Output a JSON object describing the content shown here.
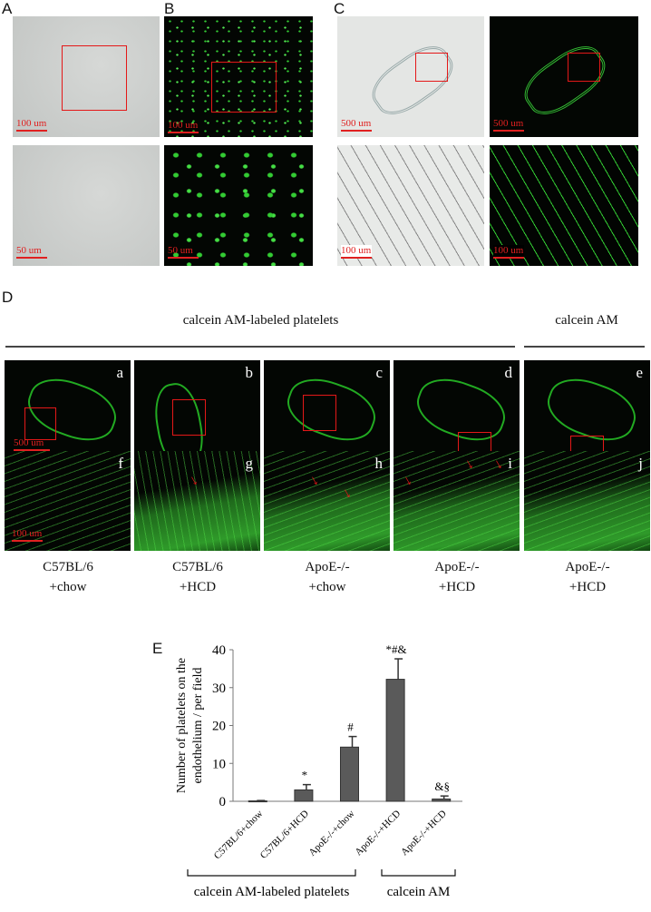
{
  "panels": {
    "A": "A",
    "B": "B",
    "C": "C",
    "D": "D",
    "E": "E"
  },
  "scale_bars": {
    "a_top": "100 um",
    "a_bot": "50 um",
    "b_top": "100 um",
    "b_bot": "50 um",
    "c_top_bf": "500 um",
    "c_top_fl": "500 um",
    "c_bot_bf": "100 um",
    "c_bot_fl": "100 um",
    "d_top": "500 um",
    "d_bot": "100 um"
  },
  "panel_d": {
    "group_labels": [
      "calcein AM-labeled platelets",
      "calcein AM"
    ],
    "subpanels_top": [
      "a",
      "b",
      "c",
      "d",
      "e"
    ],
    "subpanels_bottom": [
      "f",
      "g",
      "h",
      "i",
      "j"
    ],
    "captions": [
      [
        "C57BL/6",
        "+chow"
      ],
      [
        "C57BL/6",
        "+HCD"
      ],
      [
        "ApoE-/-",
        "+chow"
      ],
      [
        "ApoE-/-",
        "+HCD"
      ],
      [
        "ApoE-/-",
        "+HCD"
      ]
    ]
  },
  "colors": {
    "fluorescence": "#3fcf3a",
    "highlight_box": "#e41818",
    "bar": "#5a5a5a"
  },
  "chart_data": {
    "type": "bar",
    "ylabel": "Number of platelets on the endothelium / per field",
    "ylim": [
      0,
      40
    ],
    "yticks": [
      0,
      10,
      20,
      30,
      40
    ],
    "categories": [
      "C57BL/6+chow",
      "C57BL/6+HCD",
      "ApoE-/-+chow",
      "ApoE-/-+HCD",
      "ApoE-/-+HCD"
    ],
    "values": [
      0.1,
      3.0,
      14.3,
      32.2,
      0.6
    ],
    "errors": [
      0.1,
      1.4,
      2.8,
      5.4,
      0.8
    ],
    "annotations": [
      "",
      "*",
      "#",
      "*#&",
      "&§"
    ],
    "group_labels": [
      "calcein AM-labeled platelets",
      "calcein AM"
    ],
    "grid": false
  }
}
